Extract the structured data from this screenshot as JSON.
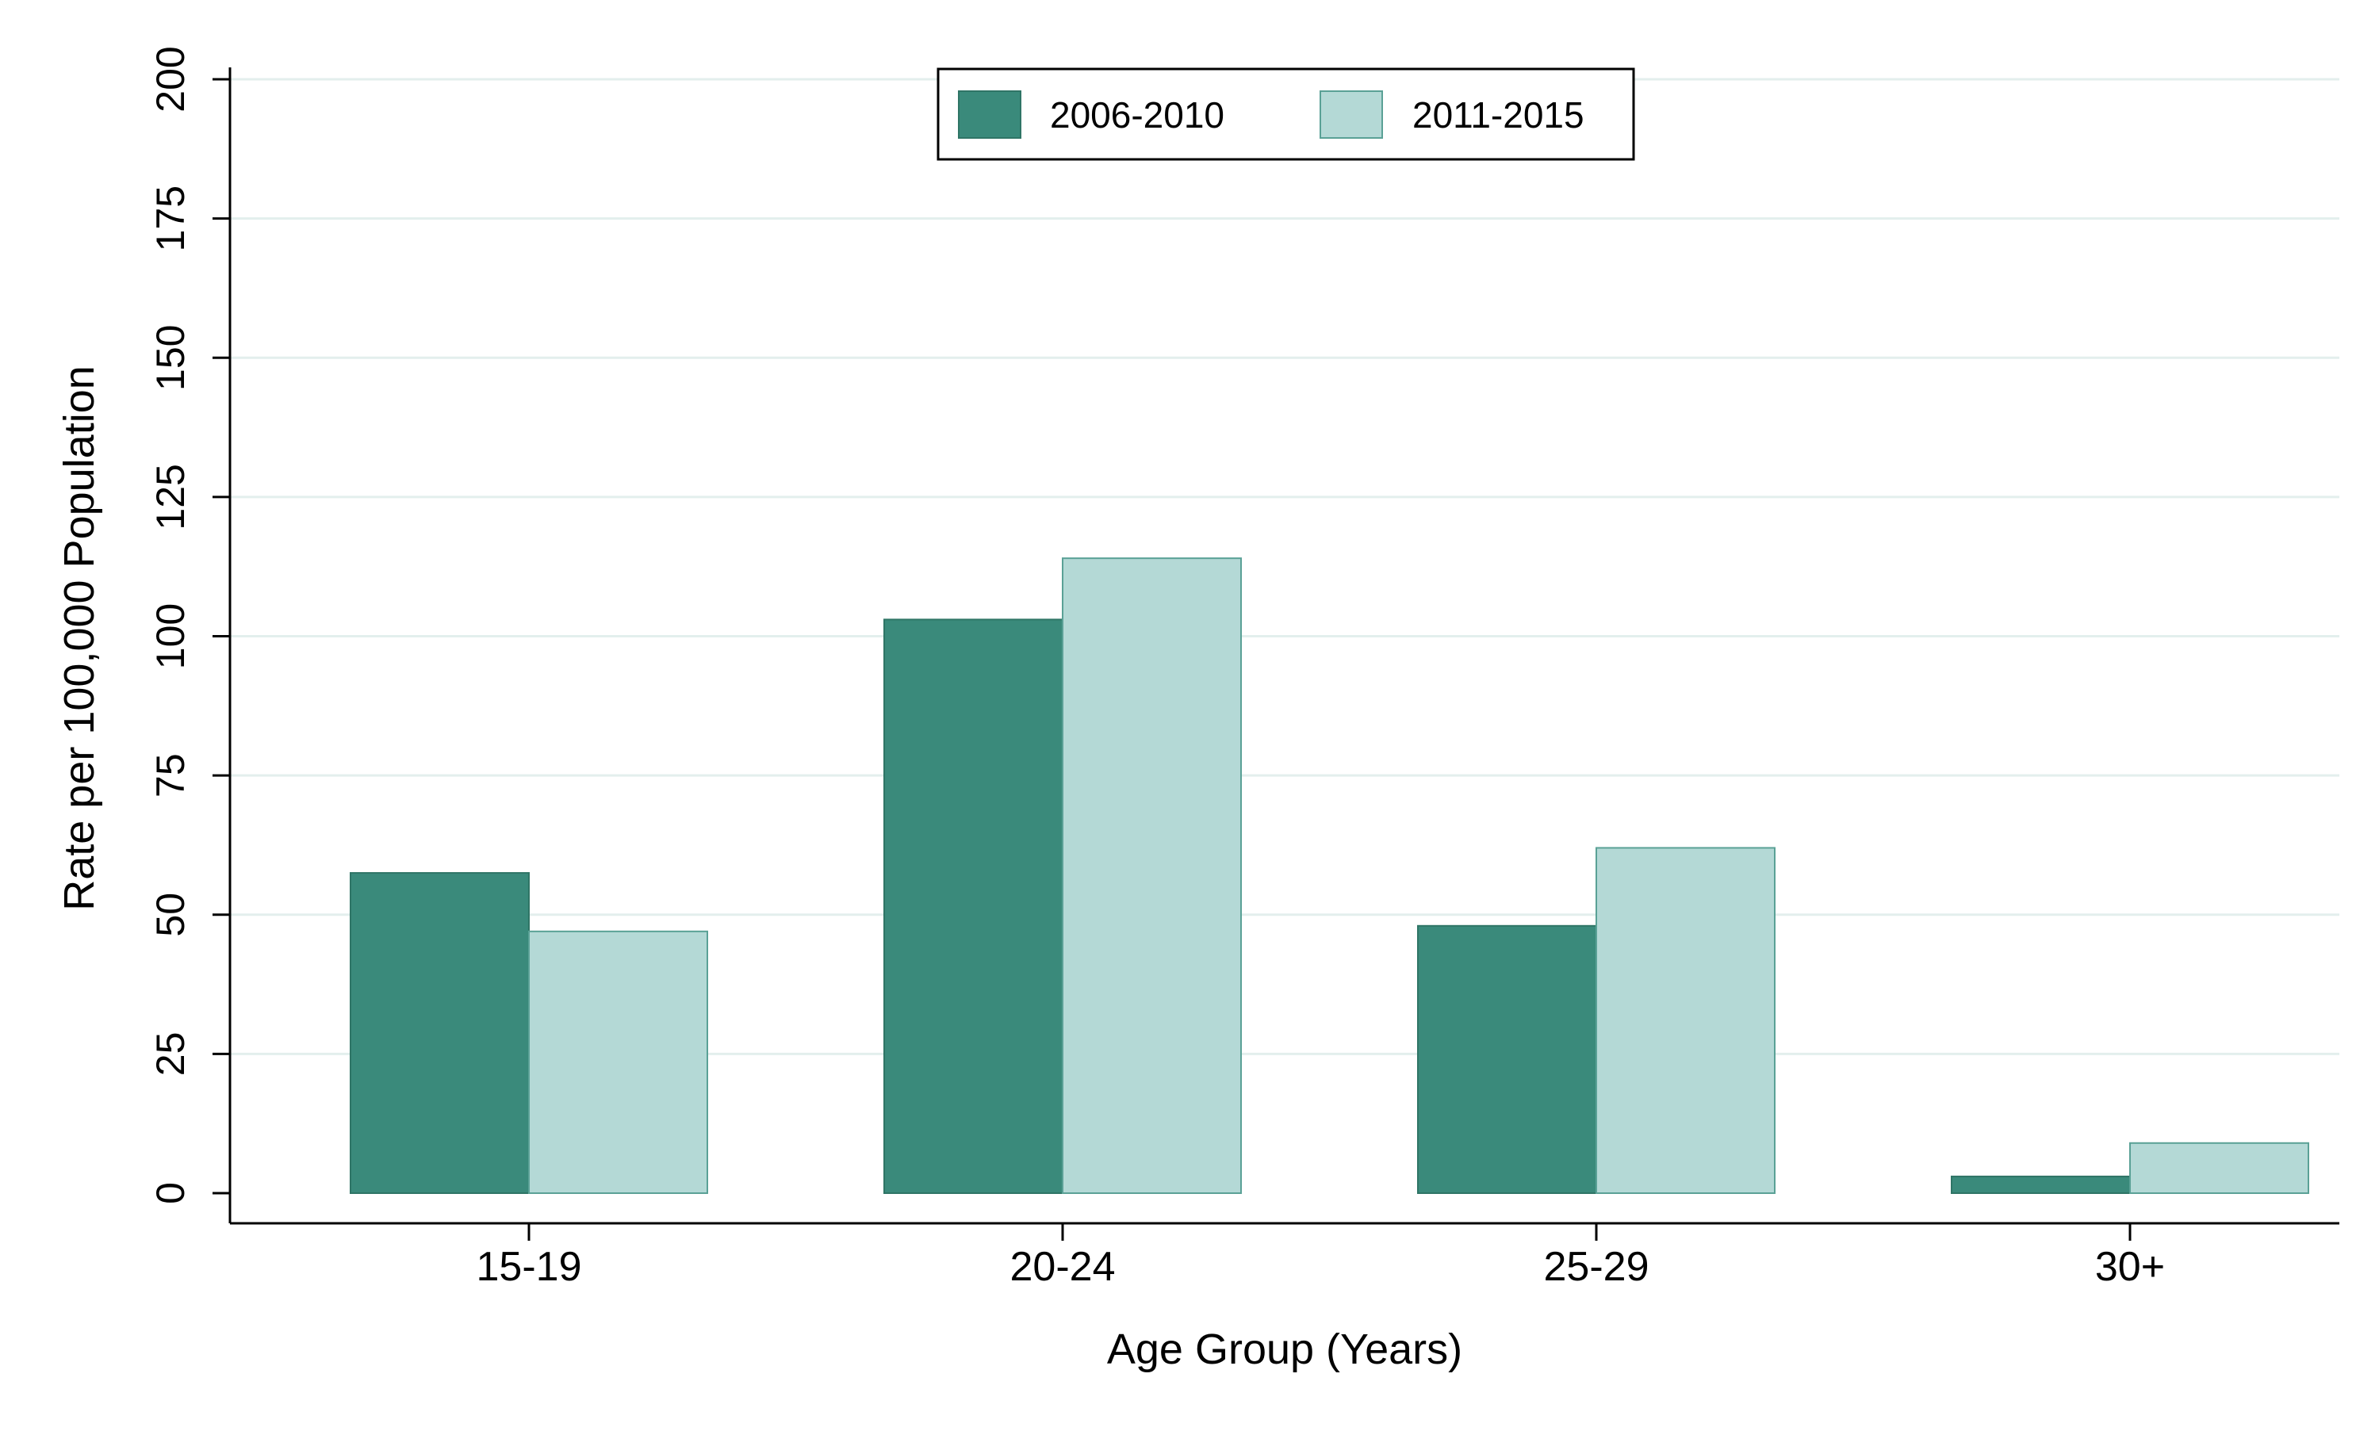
{
  "chart_data": {
    "type": "bar",
    "title": "",
    "xlabel": "Age Group (Years)",
    "ylabel": "Rate per 100,000 Population",
    "categories": [
      "15-19",
      "20-24",
      "25-29",
      "30+"
    ],
    "series": [
      {
        "name": "2006-2010",
        "color": "#3a8a7b",
        "values": [
          57.5,
          103,
          48,
          3
        ]
      },
      {
        "name": "2011-2015",
        "color": "#b4d9d6",
        "values": [
          47,
          114,
          62,
          9
        ]
      }
    ],
    "ylim": [
      0,
      200
    ],
    "yticks": [
      "0",
      "25",
      "50",
      "75",
      "100",
      "125",
      "150",
      "175",
      "200"
    ],
    "grid": true,
    "legend_position": "top-center"
  }
}
